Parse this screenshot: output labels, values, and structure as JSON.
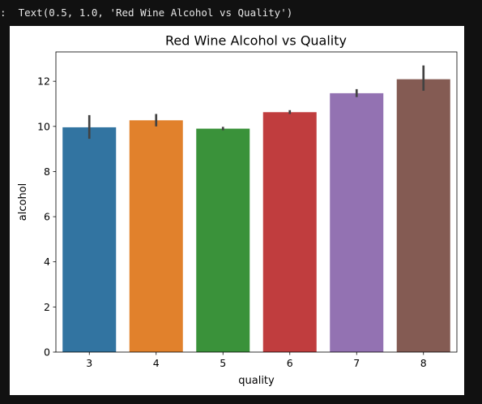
{
  "output": {
    "prompt": ":",
    "text": "Text(0.5, 1.0, 'Red Wine Alcohol vs Quality')"
  },
  "chart_data": {
    "type": "bar",
    "title": "Red Wine Alcohol vs Quality",
    "xlabel": "quality",
    "ylabel": "alcohol",
    "categories": [
      "3",
      "4",
      "5",
      "6",
      "7",
      "8"
    ],
    "values": [
      9.96,
      10.27,
      9.9,
      10.63,
      11.47,
      12.09
    ],
    "error_bars": [
      [
        9.45,
        10.5
      ],
      [
        10.0,
        10.55
      ],
      [
        9.83,
        9.98
      ],
      [
        10.55,
        10.72
      ],
      [
        11.3,
        11.65
      ],
      [
        11.58,
        12.7
      ]
    ],
    "colors": [
      "#3274a1",
      "#e1812c",
      "#3a923a",
      "#c03d3e",
      "#9372b2",
      "#845b53"
    ],
    "ylim": [
      0,
      13.3
    ],
    "yticks": [
      0,
      2,
      4,
      6,
      8,
      10,
      12
    ],
    "grid": false
  }
}
